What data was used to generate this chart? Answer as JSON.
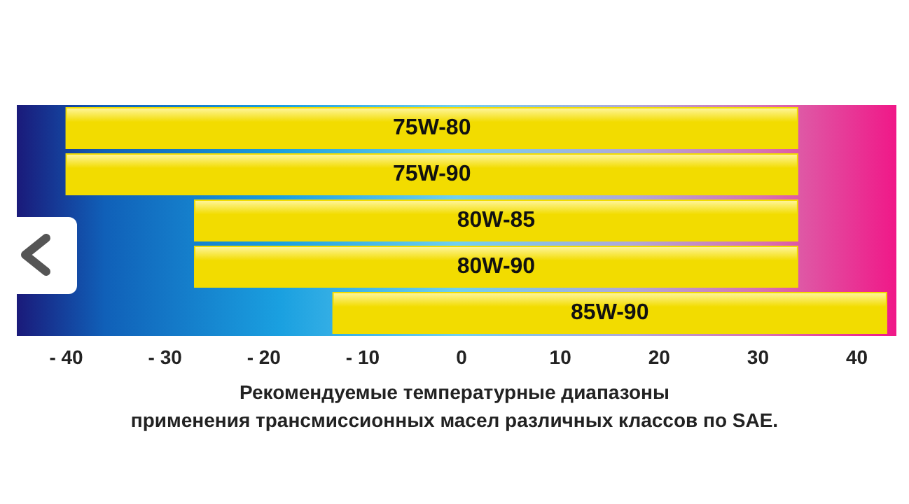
{
  "chart_data": {
    "type": "bar",
    "orientation": "horizontal",
    "categories": [
      "75W-80",
      "75W-90",
      "80W-85",
      "80W-90",
      "85W-90"
    ],
    "base": [
      -40,
      -40,
      -27,
      -27,
      -13
    ],
    "values": [
      74,
      74,
      61,
      61,
      56
    ],
    "color": "#f2dc00",
    "xlim": [
      -45,
      44
    ],
    "xticks": [
      {
        "value": -40,
        "label": "- 40"
      },
      {
        "value": -30,
        "label": "- 30"
      },
      {
        "value": -20,
        "label": "- 20"
      },
      {
        "value": -10,
        "label": "- 10"
      },
      0,
      10,
      20,
      30,
      40
    ],
    "tick_labels": "x",
    "grid": false,
    "annotations": [
      "Рекомендуемые температурные диапазоны",
      "применения трансмиссионных масел  различных классов  по SAE."
    ]
  }
}
